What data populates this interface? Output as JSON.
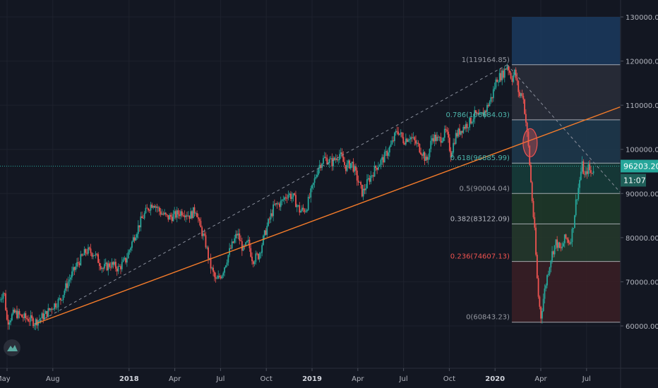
{
  "chart_data": {
    "type": "candlestick",
    "title": "",
    "xlabel": "",
    "ylabel": "",
    "ylim": [
      55000,
      133000
    ],
    "grid": true,
    "x_ticks": [
      {
        "label": "May",
        "t": 0.0,
        "bold": false
      },
      {
        "label": "Aug",
        "t": 3.0,
        "bold": false
      },
      {
        "label": "2018",
        "t": 8.0,
        "bold": true
      },
      {
        "label": "Apr",
        "t": 11.0,
        "bold": false
      },
      {
        "label": "Jul",
        "t": 14.0,
        "bold": false
      },
      {
        "label": "Oct",
        "t": 17.0,
        "bold": false
      },
      {
        "label": "2019",
        "t": 20.0,
        "bold": true
      },
      {
        "label": "Apr",
        "t": 23.0,
        "bold": false
      },
      {
        "label": "Jul",
        "t": 26.0,
        "bold": false
      },
      {
        "label": "Oct",
        "t": 29.0,
        "bold": false
      },
      {
        "label": "2020",
        "t": 32.0,
        "bold": true
      },
      {
        "label": "Apr",
        "t": 35.0,
        "bold": false
      },
      {
        "label": "Jul",
        "t": 38.0,
        "bold": false
      }
    ],
    "y_ticks": [
      60000,
      70000,
      80000,
      90000,
      100000,
      110000,
      120000,
      130000
    ],
    "y_tick_labels": [
      "60000.00",
      "70000.00",
      "80000.00",
      "90000.00",
      "100000.00",
      "110000.00",
      "120000.00",
      "130000.00"
    ],
    "x_range": [
      0,
      40.2
    ],
    "price_path": [
      [
        -0.5,
        66000
      ],
      [
        -0.2,
        68000
      ],
      [
        0.0,
        61000
      ],
      [
        0.5,
        63000
      ],
      [
        1.0,
        62000
      ],
      [
        1.5,
        61500
      ],
      [
        1.8,
        60800
      ],
      [
        2.5,
        62500
      ],
      [
        3.0,
        64500
      ],
      [
        3.5,
        66000
      ],
      [
        4.0,
        70000
      ],
      [
        4.6,
        74000
      ],
      [
        5.2,
        77000
      ],
      [
        5.7,
        76500
      ],
      [
        6.3,
        73000
      ],
      [
        6.8,
        74000
      ],
      [
        7.3,
        73000
      ],
      [
        7.8,
        75000
      ],
      [
        8.3,
        80000
      ],
      [
        8.8,
        84000
      ],
      [
        9.3,
        87000
      ],
      [
        9.6,
        88000
      ],
      [
        10.0,
        86000
      ],
      [
        10.5,
        84500
      ],
      [
        11.0,
        85000
      ],
      [
        11.5,
        86000
      ],
      [
        12.0,
        85000
      ],
      [
        12.4,
        86500
      ],
      [
        12.6,
        83000
      ],
      [
        13.0,
        79000
      ],
      [
        13.3,
        74000
      ],
      [
        13.7,
        70000
      ],
      [
        14.1,
        72000
      ],
      [
        14.6,
        77000
      ],
      [
        15.1,
        81000
      ],
      [
        15.5,
        77000
      ],
      [
        15.8,
        79000
      ],
      [
        16.1,
        75000
      ],
      [
        16.5,
        76000
      ],
      [
        17.0,
        82000
      ],
      [
        17.5,
        87000
      ],
      [
        18.0,
        88000
      ],
      [
        18.4,
        90000
      ],
      [
        18.8,
        89000
      ],
      [
        19.2,
        86000
      ],
      [
        19.6,
        86500
      ],
      [
        20.0,
        91000
      ],
      [
        20.4,
        96000
      ],
      [
        20.8,
        98000
      ],
      [
        21.3,
        97000
      ],
      [
        21.8,
        99000
      ],
      [
        22.2,
        96000
      ],
      [
        22.6,
        97000
      ],
      [
        22.9,
        94000
      ],
      [
        23.3,
        90000
      ],
      [
        23.7,
        93000
      ],
      [
        24.2,
        96000
      ],
      [
        24.7,
        98000
      ],
      [
        25.2,
        101000
      ],
      [
        25.6,
        104500
      ],
      [
        26.0,
        102000
      ],
      [
        26.4,
        103000
      ],
      [
        26.9,
        101000
      ],
      [
        27.3,
        99000
      ],
      [
        27.5,
        97000
      ],
      [
        27.9,
        103000
      ],
      [
        28.3,
        102000
      ],
      [
        28.8,
        104000
      ],
      [
        29.1,
        99000
      ],
      [
        29.4,
        103000
      ],
      [
        29.9,
        105000
      ],
      [
        30.3,
        106000
      ],
      [
        30.7,
        108000
      ],
      [
        31.0,
        107000
      ],
      [
        31.4,
        109000
      ],
      [
        31.8,
        112000
      ],
      [
        32.1,
        116000
      ],
      [
        32.5,
        117000
      ],
      [
        32.8,
        119165
      ],
      [
        33.1,
        116000
      ],
      [
        33.3,
        117500
      ],
      [
        33.6,
        112000
      ],
      [
        33.8,
        113000
      ],
      [
        34.0,
        107000
      ],
      [
        34.2,
        100000
      ],
      [
        34.4,
        90000
      ],
      [
        34.6,
        81000
      ],
      [
        34.8,
        68000
      ],
      [
        35.0,
        62000
      ],
      [
        35.2,
        67000
      ],
      [
        35.4,
        71000
      ],
      [
        35.7,
        76000
      ],
      [
        36.0,
        79000
      ],
      [
        36.3,
        77000
      ],
      [
        36.6,
        80000
      ],
      [
        36.9,
        79000
      ],
      [
        37.1,
        82000
      ],
      [
        37.3,
        88000
      ],
      [
        37.5,
        92000
      ],
      [
        37.7,
        96500
      ],
      [
        37.9,
        93500
      ],
      [
        38.1,
        96000
      ],
      [
        38.3,
        94500
      ],
      [
        38.5,
        96203
      ]
    ],
    "trendlines": [
      {
        "name": "support",
        "color": "#f57c2a",
        "dashed": false,
        "from": [
          1.8,
          60400
        ],
        "to": [
          40.2,
          109600
        ]
      },
      {
        "name": "swing",
        "color": "#8a8f9c",
        "dashed": true,
        "from": [
          1.8,
          60400
        ],
        "to": [
          32.8,
          119165
        ]
      },
      {
        "name": "swing-down",
        "color": "#8a8f9c",
        "dashed": true,
        "from": [
          32.8,
          119165
        ],
        "to": [
          40.2,
          90300
        ]
      }
    ],
    "fibonacci": {
      "x_start": 33.1,
      "x_end": 40.2,
      "levels": [
        {
          "ratio": 1.618,
          "value": 130000,
          "label": ""
        },
        {
          "ratio": 1,
          "value": 119164.85,
          "label": "1(119164.85)",
          "color": "#9598a1",
          "fill": "#1b3a5e"
        },
        {
          "ratio": 0.786,
          "value": 106684.03,
          "label": "0.786(106684.03)",
          "color": "#4db6ac",
          "fill": "#2a2e39"
        },
        {
          "ratio": 0.618,
          "value": 96885.99,
          "label": "0.618(96885.99)",
          "color": "#4db6ac",
          "fill": "#1f3a4d"
        },
        {
          "ratio": 0.5,
          "value": 90004.04,
          "label": "0.5(90004.04)",
          "color": "#9598a1",
          "fill": "#163d3a"
        },
        {
          "ratio": 0.382,
          "value": 83122.09,
          "label": "0.382(83122.09)",
          "color": "#b2b5be",
          "fill": "#1f3a28"
        },
        {
          "ratio": 0.236,
          "value": 74607.13,
          "label": "0.236(74607.13)",
          "color": "#ef5350",
          "fill": "#263a2c"
        },
        {
          "ratio": 0,
          "value": 60843.23,
          "label": "0(60843.23)",
          "color": "#9598a1",
          "fill": "#3b1f24"
        }
      ]
    },
    "highlight_circle": {
      "x": 34.3,
      "y": 101500,
      "color": "#ef5350"
    },
    "current_price": {
      "value": 96203.2,
      "label": "96203.20",
      "countdown": "11:07",
      "color": "#26a69a"
    }
  },
  "watermark": {
    "icon": "tradingview-logo-icon"
  }
}
